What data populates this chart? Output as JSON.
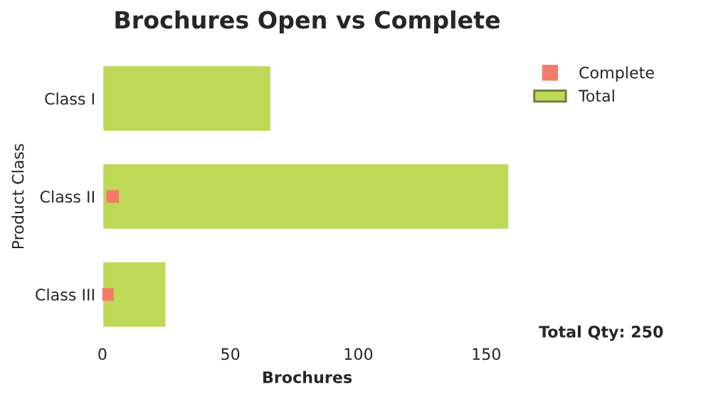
{
  "chart_data": {
    "type": "bar",
    "orientation": "horizontal",
    "title": "Brochures Open vs Complete",
    "xlabel": "Brochures",
    "ylabel": "Product Class",
    "categories": [
      "Class I",
      "Class II",
      "Class III"
    ],
    "series": [
      {
        "name": "Complete",
        "type": "scatter",
        "marker": "square",
        "color": "#f47a6a",
        "values": [
          null,
          4,
          2
        ]
      },
      {
        "name": "Total",
        "color": "#bdd957",
        "values": [
          66,
          159,
          25
        ]
      }
    ],
    "xlim": [
      0,
      160
    ],
    "xticks": [
      0,
      50,
      100,
      150
    ],
    "grid": false,
    "legend": "top right",
    "annotations": [
      "Total Qty: 250"
    ]
  }
}
